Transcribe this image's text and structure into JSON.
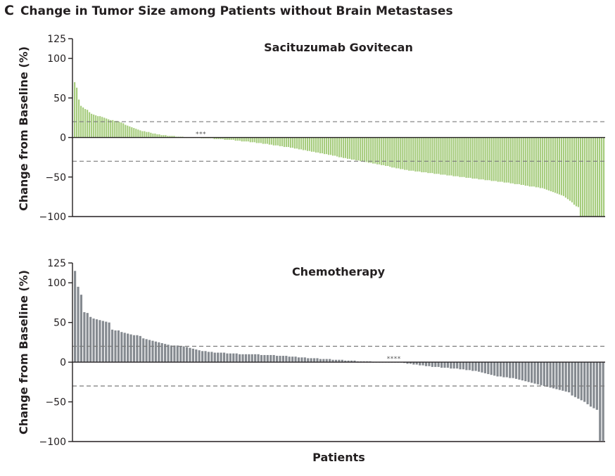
{
  "figure": {
    "panel_letter": "C",
    "title": "Change in Tumor Size among Patients without Brain Metastases"
  },
  "colors": {
    "sacituzumab": "#a6cc7d",
    "chemotherapy": "#858a90",
    "axis": "#231f20",
    "reference_line": "#7a7a7a"
  },
  "chart_data": [
    {
      "type": "bar",
      "panel_title": "Sacituzumab Govitecan",
      "xlabel": "",
      "ylabel": "Change from Baseline (%)",
      "ylim": [
        -100,
        125
      ],
      "yticks": [
        125,
        100,
        50,
        0,
        -50,
        -100
      ],
      "reference_lines": [
        20,
        -30
      ],
      "annotation": {
        "text": "***",
        "near_patient": 60
      },
      "series": [
        {
          "values": [
            70,
            63,
            48,
            40,
            38,
            36,
            35,
            32,
            30,
            29,
            28,
            27,
            27,
            26,
            25,
            24,
            23,
            22,
            22,
            21,
            21,
            20,
            19,
            18,
            16,
            15,
            14,
            13,
            12,
            11,
            10,
            9,
            8,
            8,
            7,
            7,
            6,
            5,
            5,
            4,
            4,
            3,
            3,
            3,
            2,
            2,
            2,
            2,
            1,
            1,
            1,
            1,
            0,
            0,
            0,
            0,
            0,
            0,
            0,
            0,
            -1,
            -1,
            -1,
            -1,
            -1,
            -1,
            -2,
            -2,
            -2,
            -2,
            -2,
            -3,
            -3,
            -3,
            -3,
            -3,
            -4,
            -4,
            -4,
            -5,
            -5,
            -5,
            -5,
            -6,
            -6,
            -6,
            -7,
            -7,
            -7,
            -8,
            -8,
            -8,
            -9,
            -9,
            -10,
            -10,
            -10,
            -11,
            -11,
            -12,
            -12,
            -12,
            -13,
            -13,
            -14,
            -14,
            -15,
            -15,
            -16,
            -16,
            -17,
            -17,
            -18,
            -18,
            -19,
            -19,
            -20,
            -20,
            -21,
            -21,
            -22,
            -22,
            -23,
            -23,
            -24,
            -25,
            -25,
            -26,
            -26,
            -27,
            -27,
            -28,
            -28,
            -29,
            -29,
            -30,
            -30,
            -31,
            -31,
            -32,
            -32,
            -33,
            -33,
            -34,
            -34,
            -35,
            -35,
            -36,
            -36,
            -37,
            -38,
            -38,
            -39,
            -39,
            -40,
            -40,
            -41,
            -41,
            -42,
            -42,
            -42,
            -43,
            -43,
            -43,
            -44,
            -44,
            -44,
            -45,
            -45,
            -45,
            -46,
            -46,
            -46,
            -47,
            -47,
            -47,
            -48,
            -48,
            -48,
            -49,
            -49,
            -49,
            -50,
            -50,
            -50,
            -51,
            -51,
            -51,
            -52,
            -52,
            -52,
            -53,
            -53,
            -53,
            -54,
            -54,
            -54,
            -55,
            -55,
            -55,
            -56,
            -56,
            -56,
            -57,
            -57,
            -57,
            -58,
            -58,
            -59,
            -59,
            -59,
            -60,
            -60,
            -61,
            -61,
            -62,
            -62,
            -62,
            -63,
            -63,
            -64,
            -64,
            -65,
            -66,
            -67,
            -68,
            -69,
            -70,
            -71,
            -72,
            -73,
            -74,
            -76,
            -78,
            -80,
            -82,
            -85,
            -87,
            -88,
            -100,
            -100,
            -100,
            -100,
            -100,
            -100,
            -100,
            -100,
            -100,
            -100,
            -100,
            -100
          ]
        }
      ]
    },
    {
      "type": "bar",
      "panel_title": "Chemotherapy",
      "xlabel": "Patients",
      "ylabel": "Change from Baseline (%)",
      "ylim": [
        -100,
        125
      ],
      "yticks": [
        125,
        100,
        50,
        0,
        -50,
        -100
      ],
      "reference_lines": [
        20,
        -30
      ],
      "annotation": {
        "text": "****",
        "near_patient": 103
      },
      "series": [
        {
          "values": [
            115,
            95,
            85,
            63,
            62,
            57,
            55,
            54,
            53,
            52,
            51,
            50,
            41,
            40,
            40,
            38,
            37,
            36,
            35,
            34,
            34,
            33,
            30,
            29,
            28,
            27,
            26,
            25,
            24,
            23,
            22,
            21,
            21,
            21,
            20,
            20,
            19,
            18,
            17,
            16,
            15,
            14,
            14,
            13,
            13,
            12,
            12,
            12,
            12,
            11,
            11,
            11,
            11,
            10,
            10,
            10,
            10,
            10,
            10,
            10,
            9,
            9,
            9,
            9,
            9,
            8,
            8,
            8,
            8,
            7,
            7,
            7,
            6,
            6,
            6,
            5,
            5,
            5,
            5,
            4,
            4,
            4,
            4,
            3,
            3,
            3,
            3,
            2,
            2,
            2,
            2,
            1,
            1,
            1,
            1,
            1,
            0,
            0,
            0,
            0,
            0,
            0,
            0,
            0,
            0,
            0,
            -1,
            -2,
            -2,
            -3,
            -3,
            -4,
            -4,
            -5,
            -5,
            -6,
            -6,
            -6,
            -7,
            -7,
            -7,
            -8,
            -8,
            -8,
            -9,
            -9,
            -10,
            -10,
            -11,
            -11,
            -12,
            -13,
            -14,
            -15,
            -16,
            -17,
            -18,
            -18,
            -19,
            -19,
            -20,
            -20,
            -21,
            -22,
            -23,
            -24,
            -25,
            -26,
            -27,
            -28,
            -29,
            -30,
            -31,
            -32,
            -33,
            -34,
            -35,
            -36,
            -37,
            -38,
            -42,
            -44,
            -46,
            -48,
            -50,
            -53,
            -56,
            -58,
            -60,
            -99,
            -99
          ]
        }
      ]
    }
  ]
}
